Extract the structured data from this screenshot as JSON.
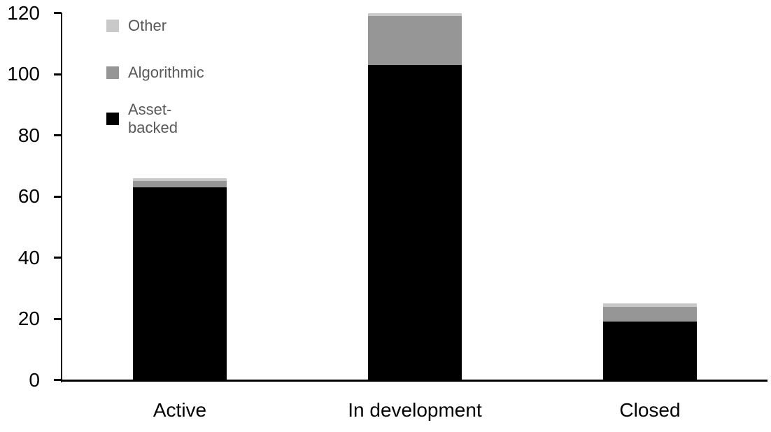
{
  "chart_data": {
    "type": "bar",
    "stacked": true,
    "title": "",
    "xlabel": "",
    "ylabel": "",
    "categories": [
      "Active",
      "In development",
      "Closed"
    ],
    "series": [
      {
        "name": "Asset-backed",
        "color": "#000000",
        "values": [
          63,
          103,
          19
        ]
      },
      {
        "name": "Algorithmic",
        "color": "#969696",
        "values": [
          2,
          16,
          5
        ]
      },
      {
        "name": "Other",
        "color": "#c9c9c9",
        "values": [
          1,
          1,
          1
        ]
      }
    ],
    "totals": [
      66,
      120,
      25
    ],
    "ylim": [
      0,
      120
    ],
    "yticks": [
      0,
      20,
      40,
      60,
      80,
      100,
      120
    ],
    "grid": false,
    "legend_position": "top-left",
    "legend_order": [
      "Other",
      "Algorithmic",
      "Asset-backed"
    ]
  },
  "colors": {
    "background": "#ffffff",
    "axis": "#000000",
    "axis_label_text": "#000000",
    "legend_text": "#595959"
  }
}
